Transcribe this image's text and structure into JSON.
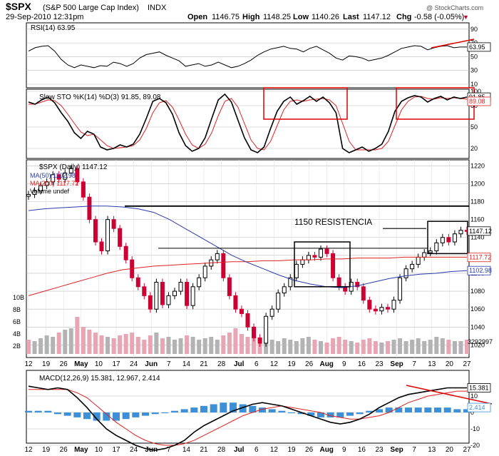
{
  "header": {
    "symbol": "$SPX",
    "name": "(S&P 500 Large Cap Index)",
    "exchange": "INDX",
    "datetime": "29-Sep-2010 12:31pm",
    "open_label": "Open",
    "open": "1146.75",
    "high_label": "High",
    "high": "1148.25",
    "low_label": "Low",
    "low": "1140.26",
    "last_label": "Last",
    "last": "1147.12",
    "chg_label": "Chg",
    "chg": "-0.58 (-0.05%)",
    "chg_arrow": "▼",
    "credit": "@ StockCharts.com"
  },
  "colors": {
    "price_up": "#000000",
    "price_down": "#cc0033",
    "ma50": "#2b3aa8",
    "ma200": "#dd2222",
    "sto_d": "#dd2222",
    "macd_signal": "#dd2222",
    "hist": "#3d8fd6",
    "vol_up": "#b3b3b3",
    "vol_down": "#e8a5b3",
    "annotation": "#dd0000"
  },
  "chart_data": [
    {
      "type": "line",
      "panel": "rsi",
      "title": "RSI(14) 63.95",
      "y_ticks": [
        90,
        70,
        50,
        30,
        10
      ],
      "ylim": [
        10,
        95
      ],
      "last_label": "63.95",
      "series": [
        {
          "name": "RSI(14)",
          "values": [
            58,
            63,
            65,
            66,
            58,
            46,
            38,
            34,
            38,
            36,
            34,
            37,
            36,
            42,
            40,
            36,
            40,
            48,
            53,
            55,
            57,
            52,
            48,
            44,
            36,
            38,
            40,
            36,
            38,
            42,
            38,
            34,
            36,
            40,
            45,
            52,
            57,
            61,
            63,
            65,
            62,
            61,
            57,
            62,
            65,
            60,
            55,
            48,
            45,
            51,
            50,
            48,
            44,
            46,
            48,
            52,
            57,
            62,
            64,
            66,
            65,
            60,
            63,
            65,
            66,
            63,
            64,
            64
          ]
        }
      ]
    },
    {
      "type": "line",
      "panel": "stochastic",
      "title": "Slow STO %K(14) %D(3) 91.85, 89.08",
      "y_ticks": [
        100,
        80,
        50,
        20
      ],
      "ylim": [
        10,
        100
      ],
      "last_labels": [
        "91.85",
        "89.08"
      ],
      "series": [
        {
          "name": "%K(14)",
          "values": [
            85,
            82,
            88,
            92,
            84,
            70,
            58,
            42,
            34,
            44,
            40,
            22,
            18,
            20,
            25,
            22,
            26,
            40,
            62,
            86,
            90,
            84,
            68,
            42,
            24,
            16,
            20,
            35,
            62,
            88,
            96,
            85,
            60,
            35,
            18,
            14,
            22,
            48,
            72,
            86,
            92,
            82,
            87,
            93,
            86,
            92,
            84,
            70,
            20,
            14,
            18,
            22,
            16,
            20,
            26,
            44,
            72,
            86,
            91,
            94,
            92,
            85,
            90,
            93,
            88,
            92,
            90,
            92
          ]
        },
        {
          "name": "%D(3)",
          "values": [
            82,
            82,
            85,
            88,
            87,
            80,
            68,
            55,
            43,
            38,
            40,
            32,
            24,
            20,
            21,
            22,
            24,
            32,
            48,
            70,
            84,
            87,
            78,
            60,
            40,
            25,
            20,
            26,
            42,
            66,
            86,
            90,
            78,
            55,
            32,
            20,
            18,
            30,
            52,
            74,
            86,
            88,
            86,
            88,
            89,
            90,
            88,
            80,
            55,
            30,
            18,
            18,
            18,
            18,
            20,
            30,
            52,
            74,
            86,
            92,
            93,
            90,
            89,
            91,
            90,
            91,
            90,
            89
          ]
        }
      ]
    },
    {
      "type": "candlestick",
      "panel": "price",
      "title": "$SPX (Daily) 1147.12",
      "x_labels": [
        "12",
        "19",
        "26",
        "May",
        "10",
        "17",
        "24",
        "Jun",
        "7",
        "14",
        "21",
        "28",
        "Jul",
        "6",
        "12",
        "19",
        "26",
        "Aug",
        "9",
        "16",
        "23",
        "Sep",
        "7",
        "13",
        "20",
        "27"
      ],
      "y_ticks": [
        1220,
        1200,
        1180,
        1160,
        1140,
        1120,
        1100,
        1080,
        1060,
        1040,
        1020
      ],
      "ylim": [
        1010,
        1225
      ],
      "legend": [
        "$SPX (Daily) 1147.12",
        "MA(50) 1102.98",
        "MA(200) 1117.72",
        "Volume undef"
      ],
      "close": [
        1188,
        1192,
        1198,
        1202,
        1210,
        1205,
        1212,
        1217,
        1202,
        1185,
        1160,
        1135,
        1125,
        1160,
        1150,
        1130,
        1115,
        1095,
        1085,
        1075,
        1060,
        1090,
        1065,
        1075,
        1080,
        1090,
        1064,
        1085,
        1095,
        1108,
        1115,
        1122,
        1095,
        1075,
        1060,
        1055,
        1040,
        1028,
        1022,
        1052,
        1060,
        1078,
        1085,
        1095,
        1110,
        1115,
        1120,
        1118,
        1127,
        1122,
        1095,
        1085,
        1080,
        1090,
        1085,
        1070,
        1060,
        1058,
        1062,
        1060,
        1070,
        1095,
        1105,
        1110,
        1118,
        1123,
        1125,
        1134,
        1140,
        1135,
        1144,
        1148,
        1147
      ],
      "ma50": [
        1170,
        1172,
        1173,
        1174,
        1175,
        1175,
        1174,
        1172,
        1168,
        1160,
        1150,
        1140,
        1130,
        1120,
        1112,
        1105,
        1098,
        1092,
        1088,
        1085,
        1084,
        1086,
        1090,
        1094,
        1097,
        1099,
        1100,
        1102,
        1103
      ],
      "ma200": [
        1075,
        1080,
        1085,
        1090,
        1095,
        1100,
        1104,
        1106,
        1108,
        1109,
        1110,
        1111,
        1112,
        1113,
        1113,
        1114,
        1114,
        1115,
        1115,
        1116,
        1116,
        1117,
        1117,
        1117,
        1118,
        1118,
        1118,
        1118,
        1118
      ],
      "last_labels": [
        "1147.12",
        "1117.72",
        "1102.98"
      ],
      "volume_ticks": [
        "10B",
        "8B",
        "6B",
        "4B",
        "2B"
      ],
      "volume_last": "3292997",
      "annotations": [
        "1150 RESISTENCIA"
      ]
    },
    {
      "type": "line",
      "panel": "macd",
      "title": "MACD(12,26,9) 15.381, 12.967, 2.414",
      "y_ticks": [
        10,
        0,
        -10,
        -20
      ],
      "ylim": [
        -27,
        20
      ],
      "last_labels": [
        "15.381",
        "2.414"
      ],
      "series": [
        {
          "name": "MACD(12,26,9)",
          "values": [
            16,
            15,
            14,
            15,
            14,
            9,
            3,
            -4,
            -10,
            -14,
            -17,
            -20,
            -22,
            -23,
            -22,
            -20,
            -17,
            -12,
            -8,
            -5,
            -2,
            1,
            3,
            5,
            6,
            5,
            4,
            2,
            0,
            -2,
            -4,
            -6,
            -7,
            -6,
            -4,
            -1,
            3,
            6,
            9,
            11,
            12,
            13,
            14,
            15,
            15,
            15
          ]
        },
        {
          "name": "Signal",
          "values": [
            14,
            14,
            14,
            14,
            14,
            12,
            9,
            4,
            -1,
            -6,
            -10,
            -14,
            -17,
            -19,
            -20,
            -20,
            -19,
            -17,
            -14,
            -11,
            -8,
            -5,
            -2,
            0,
            2,
            3,
            4,
            3,
            2,
            1,
            0,
            -2,
            -3,
            -4,
            -4,
            -3,
            -2,
            0,
            3,
            6,
            8,
            10,
            11,
            12,
            13,
            13
          ]
        }
      ],
      "histogram": [
        1,
        1,
        1,
        -1,
        -2,
        -3,
        -4,
        -5,
        -5,
        -5,
        -4,
        -3,
        -2,
        -1,
        0,
        1,
        2,
        3,
        4,
        5,
        6,
        6,
        5,
        4,
        3,
        2,
        1,
        0,
        -1,
        -2,
        -3,
        -3,
        -3,
        -2,
        -1,
        1,
        2,
        3,
        3,
        3,
        3,
        3,
        3,
        3,
        2,
        2
      ]
    }
  ]
}
